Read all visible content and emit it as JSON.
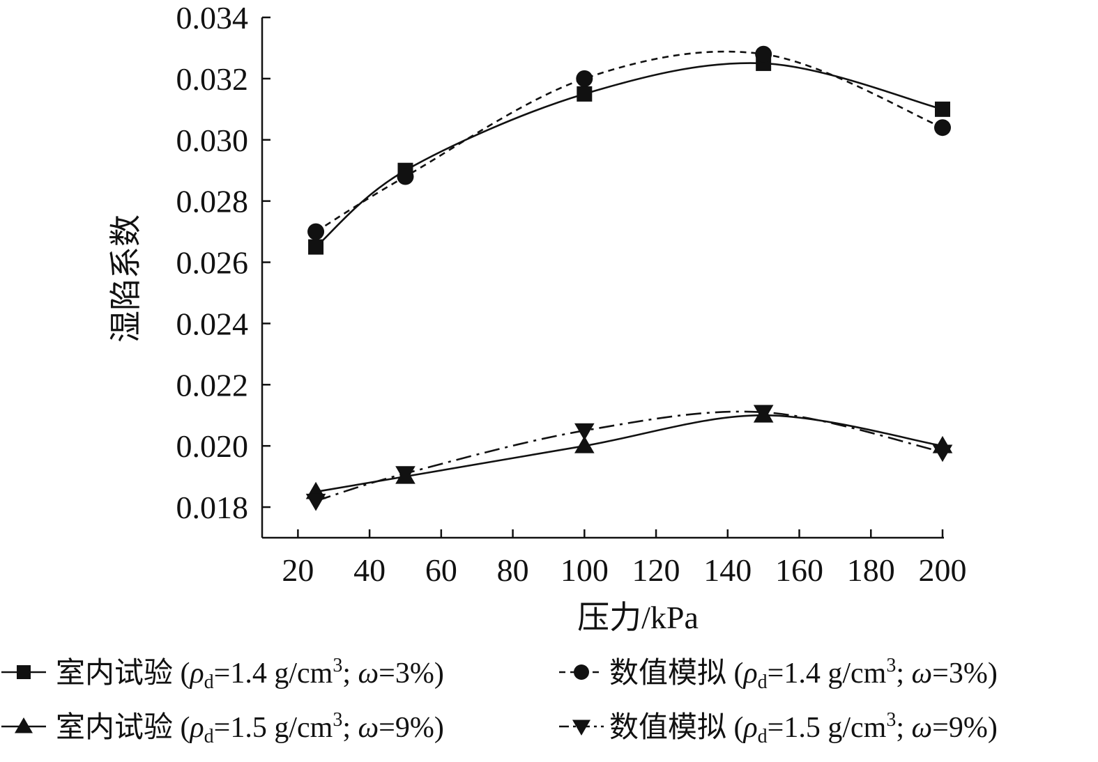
{
  "chart_data": {
    "type": "line",
    "xlabel": "压力/kPa",
    "ylabel": "湿陷系数",
    "xlim": [
      10,
      200
    ],
    "ylim": [
      0.017,
      0.034
    ],
    "x_ticks": [
      "20",
      "40",
      "60",
      "80",
      "100",
      "120",
      "140",
      "160",
      "180",
      "200"
    ],
    "y_ticks": [
      "0.018",
      "0.020",
      "0.022",
      "0.024",
      "0.026",
      "0.028",
      "0.030",
      "0.032",
      "0.034"
    ],
    "x": [
      25,
      50,
      100,
      150,
      200
    ],
    "grid": false,
    "legend_placement": "bottom",
    "series": [
      {
        "name": "室内试验 (ρd=1.4 g/cm3; ω=3%)",
        "label_main": "室内试验",
        "label_rho": "ρ",
        "label_d": "d",
        "label_mid": "=1.4 g/cm",
        "label_sup": "3",
        "label_semi": ";",
        "label_omega": "ω",
        "label_end": "=3%)",
        "values": [
          0.0265,
          0.029,
          0.0315,
          0.0325,
          0.031
        ],
        "marker": "square",
        "line": "solid",
        "color": "#111111"
      },
      {
        "name": "数值模拟 (ρd=1.4 g/cm3; ω=3%)",
        "label_main": "数值模拟",
        "label_rho": "ρ",
        "label_d": "d",
        "label_mid": "=1.4 g/cm",
        "label_sup": "3",
        "label_semi": ";",
        "label_omega": "ω",
        "label_end": "=3%)",
        "values": [
          0.027,
          0.0288,
          0.032,
          0.0328,
          0.0304
        ],
        "marker": "circle",
        "line": "dashed",
        "color": "#111111"
      },
      {
        "name": "室内试验 (ρd=1.5 g/cm3; ω=9%)",
        "label_main": "室内试验",
        "label_rho": "ρ",
        "label_d": "d",
        "label_mid": "=1.5 g/cm",
        "label_sup": "3",
        "label_semi": ";",
        "label_omega": "ω",
        "label_end": "=9%)",
        "values": [
          0.0185,
          0.019,
          0.02,
          0.021,
          0.02
        ],
        "marker": "triangle-up",
        "line": "solid",
        "color": "#111111"
      },
      {
        "name": "数值模拟 (ρd=1.5 g/cm3; ω=9%)",
        "label_main": "数值模拟",
        "label_rho": "ρ",
        "label_d": "d",
        "label_mid": "=1.5 g/cm",
        "label_sup": "3",
        "label_semi": ";",
        "label_omega": "ω",
        "label_end": "=9%)",
        "values": [
          0.0182,
          0.0191,
          0.0205,
          0.0211,
          0.0198
        ],
        "marker": "triangle-down",
        "line": "dashdot",
        "color": "#111111"
      }
    ]
  }
}
